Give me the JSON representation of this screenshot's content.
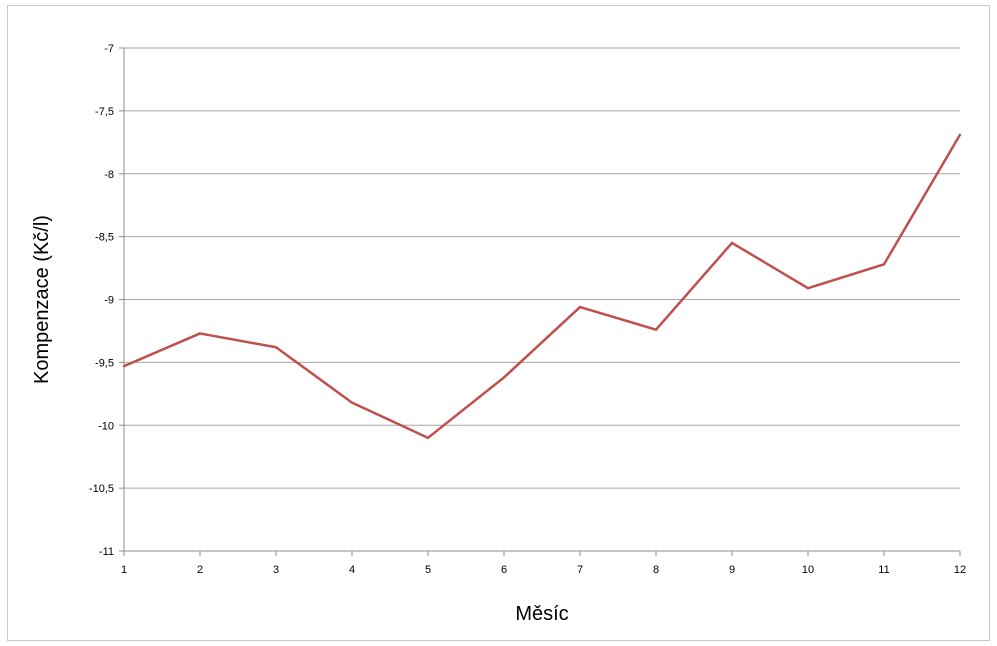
{
  "chart_data": {
    "type": "line",
    "title": "",
    "xlabel": "Měsíc",
    "ylabel": "Kompenzace (Kč/l)",
    "x": [
      1,
      2,
      3,
      4,
      5,
      6,
      7,
      8,
      9,
      10,
      11,
      12
    ],
    "x_tick_labels": [
      "1",
      "2",
      "3",
      "4",
      "5",
      "6",
      "7",
      "8",
      "9",
      "10",
      "11",
      "12"
    ],
    "y_ticks": [
      -7,
      -7.5,
      -8,
      -8.5,
      -9,
      -9.5,
      -10,
      -10.5,
      -11
    ],
    "y_tick_labels": [
      "-7",
      "-7,5",
      "-8",
      "-8,5",
      "-9",
      "-9,5",
      "-10",
      "-10,5",
      "-11"
    ],
    "ylim": [
      -11,
      -7
    ],
    "grid": true,
    "series": [
      {
        "color": "#c0504d",
        "values": [
          -9.53,
          -9.27,
          -9.38,
          -9.82,
          -10.1,
          -9.62,
          -9.06,
          -9.24,
          -8.55,
          -8.91,
          -8.72,
          -7.69
        ]
      }
    ]
  }
}
